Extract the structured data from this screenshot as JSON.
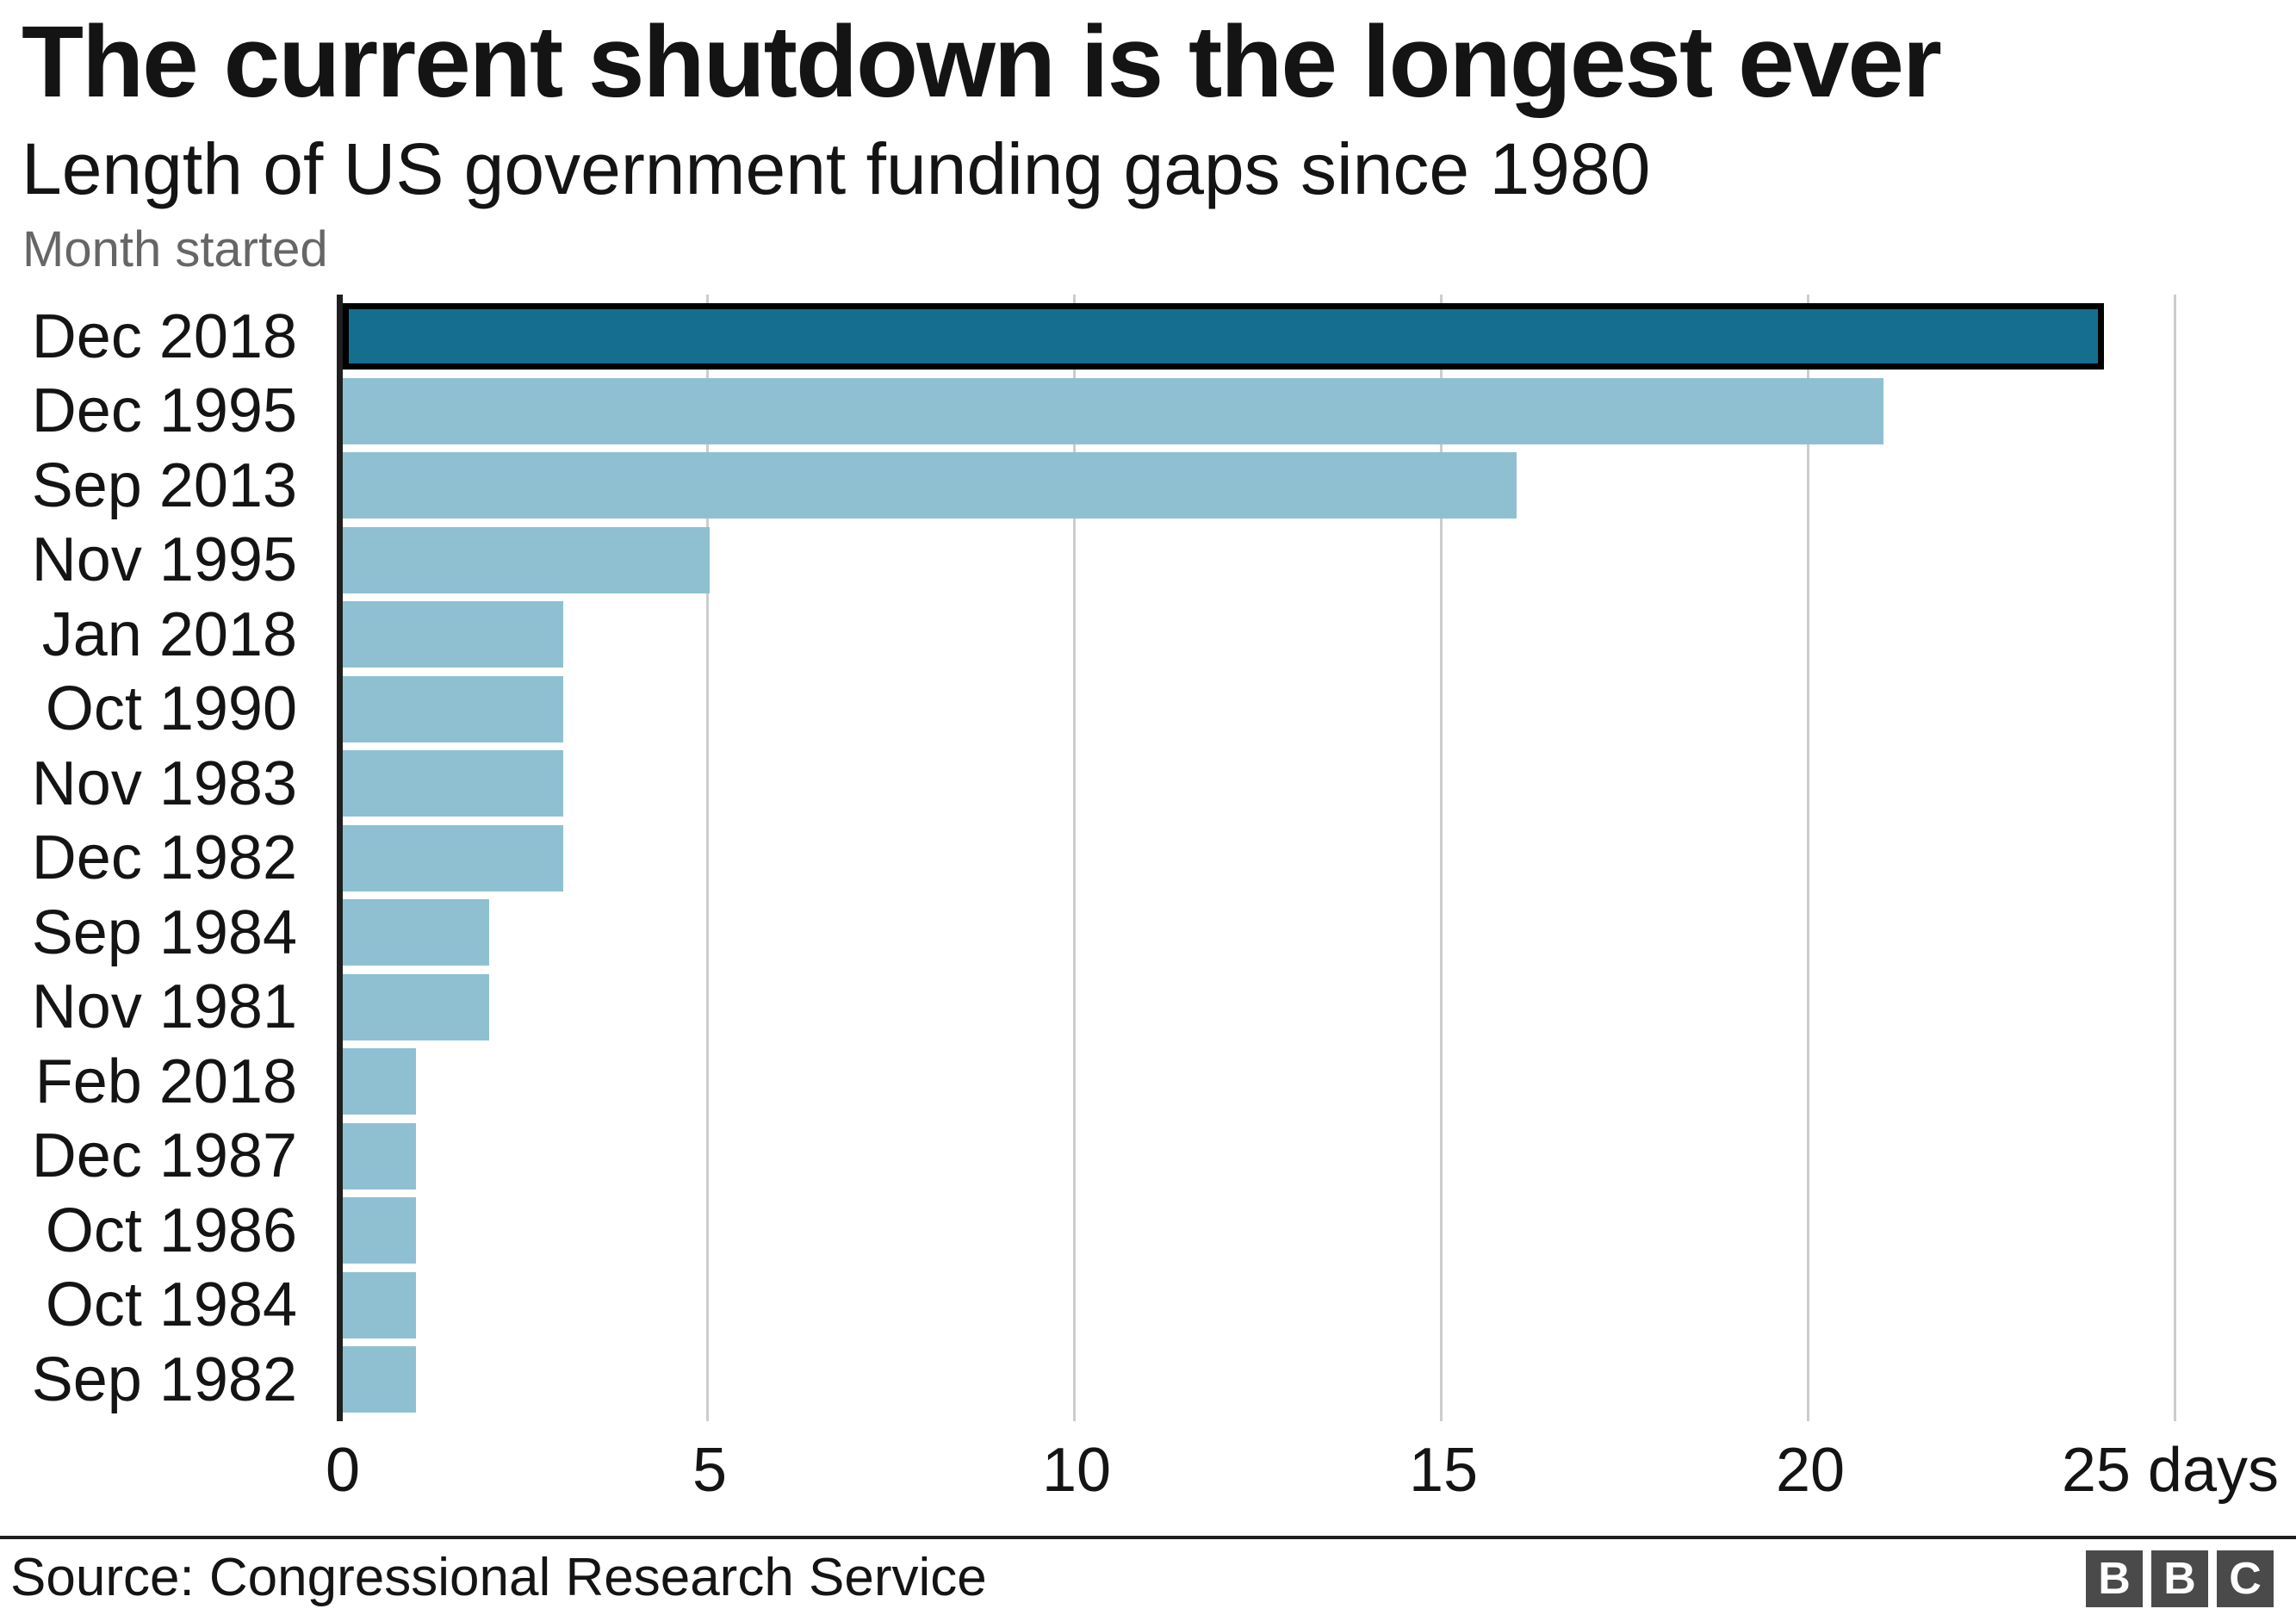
{
  "title": "The current shutdown is the longest ever",
  "subtitle": "Length of US government funding gaps since 1980",
  "axis_note": "Month started",
  "source": "Source: Congressional Research Service",
  "logo_letters": [
    "B",
    "B",
    "C"
  ],
  "colors": {
    "highlight_bar": "#156E8E",
    "highlight_border": "#000000",
    "bar": "#8FC0D2",
    "gridline": "#CCCCCC",
    "axis_line": "#1F1F1F",
    "text": "#141414",
    "muted_text": "#666666",
    "logo_background": "#4A4A4A"
  },
  "chart_data": {
    "type": "bar",
    "orientation": "horizontal",
    "title": "The current shutdown is the longest ever",
    "subtitle": "Length of US government funding gaps since 1980",
    "ylabel": "Month started",
    "xlabel": "days",
    "categories": [
      "Dec 2018",
      "Dec 1995",
      "Sep 2013",
      "Nov 1995",
      "Jan 2018",
      "Oct 1990",
      "Nov 1983",
      "Dec 1982",
      "Sep 1984",
      "Nov 1981",
      "Feb 2018",
      "Dec 1987",
      "Oct 1986",
      "Oct 1984",
      "Sep 1982"
    ],
    "values": [
      24,
      21,
      16,
      5,
      3,
      3,
      3,
      3,
      2,
      2,
      1,
      1,
      1,
      1,
      1
    ],
    "unit": "days",
    "highlight_index": 0,
    "xlim": [
      0,
      25
    ],
    "x_ticks": [
      0,
      5,
      10,
      15,
      20,
      25
    ],
    "x_tick_labels": [
      "0",
      "5",
      "10",
      "15",
      "20",
      "25 days"
    ],
    "grid": true,
    "legend": false
  }
}
